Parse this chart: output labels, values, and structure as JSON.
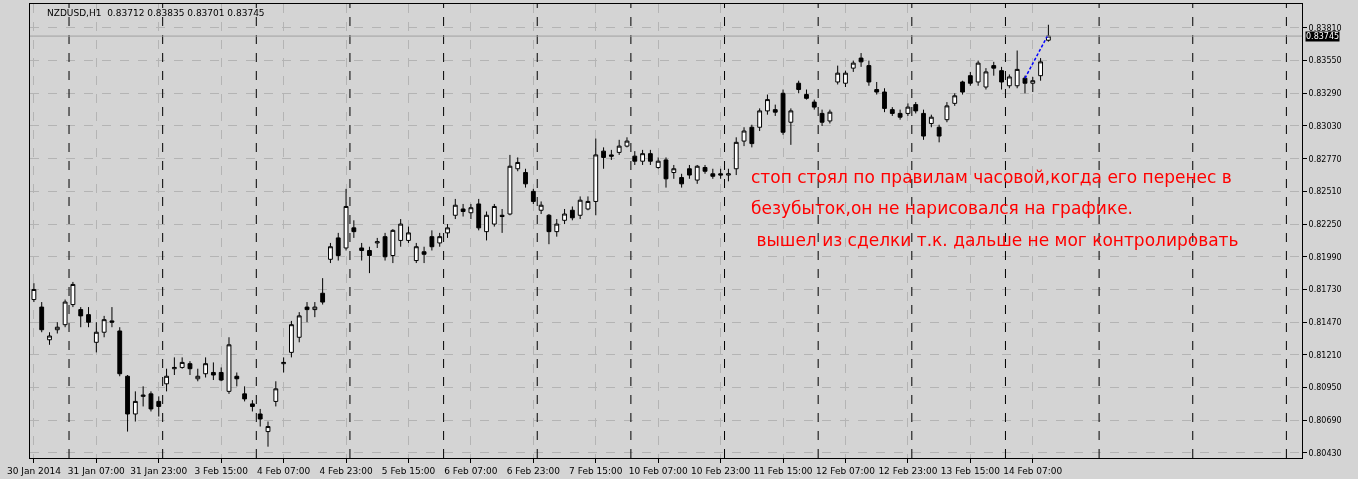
{
  "chart_data": {
    "type": "candlestick",
    "title": "NZDUSD,H1  0.83712 0.83835 0.83701 0.83745",
    "ohlc": [
      [
        0.8165,
        0.8178,
        0.8163,
        0.8173
      ],
      [
        0.8159,
        0.8163,
        0.8139,
        0.8141
      ],
      [
        0.8133,
        0.8139,
        0.8129,
        0.8136
      ],
      [
        0.8141,
        0.8147,
        0.8138,
        0.8143
      ],
      [
        0.8145,
        0.8165,
        0.8143,
        0.8163
      ],
      [
        0.8161,
        0.8179,
        0.8159,
        0.8177
      ],
      [
        0.8157,
        0.8159,
        0.8143,
        0.8152
      ],
      [
        0.8153,
        0.8159,
        0.8143,
        0.8147
      ],
      [
        0.8131,
        0.8147,
        0.8123,
        0.8139
      ],
      [
        0.8139,
        0.8152,
        0.8135,
        0.8149
      ],
      [
        0.8148,
        0.8159,
        0.8143,
        0.8147
      ],
      [
        0.814,
        0.8143,
        0.8104,
        0.8106
      ],
      [
        0.8104,
        0.8105,
        0.806,
        0.8074
      ],
      [
        0.8074,
        0.8092,
        0.8068,
        0.8084
      ],
      [
        0.8088,
        0.8096,
        0.808,
        0.8089
      ],
      [
        0.809,
        0.8092,
        0.8076,
        0.8078
      ],
      [
        0.8084,
        0.8088,
        0.8072,
        0.808
      ],
      [
        0.8098,
        0.811,
        0.8092,
        0.8104
      ],
      [
        0.811,
        0.8119,
        0.8105,
        0.8111
      ],
      [
        0.8111,
        0.8119,
        0.811,
        0.8115
      ],
      [
        0.8114,
        0.8116,
        0.8105,
        0.811
      ],
      [
        0.8102,
        0.811,
        0.81,
        0.8104
      ],
      [
        0.8106,
        0.8119,
        0.8103,
        0.8114
      ],
      [
        0.8107,
        0.8115,
        0.8101,
        0.8105
      ],
      [
        0.8107,
        0.8111,
        0.81,
        0.8101
      ],
      [
        0.8092,
        0.8135,
        0.809,
        0.8129
      ],
      [
        0.8104,
        0.8107,
        0.8096,
        0.8102
      ],
      [
        0.809,
        0.8096,
        0.8084,
        0.8086
      ],
      [
        0.8082,
        0.8085,
        0.8076,
        0.808
      ],
      [
        0.8074,
        0.8078,
        0.8064,
        0.807
      ],
      [
        0.806,
        0.8068,
        0.8048,
        0.8064
      ],
      [
        0.8084,
        0.81,
        0.808,
        0.8094
      ],
      [
        0.8114,
        0.8119,
        0.8107,
        0.8115
      ],
      [
        0.8123,
        0.8148,
        0.8119,
        0.8145
      ],
      [
        0.8135,
        0.8155,
        0.8131,
        0.8152
      ],
      [
        0.8159,
        0.8163,
        0.8147,
        0.8157
      ],
      [
        0.8157,
        0.8163,
        0.8151,
        0.8159
      ],
      [
        0.817,
        0.8182,
        0.8161,
        0.8163
      ],
      [
        0.8197,
        0.821,
        0.8194,
        0.8207
      ],
      [
        0.8214,
        0.8218,
        0.8196,
        0.82
      ],
      [
        0.8206,
        0.8253,
        0.8204,
        0.8239
      ],
      [
        0.8222,
        0.8228,
        0.8214,
        0.8219
      ],
      [
        0.8206,
        0.821,
        0.8196,
        0.8204
      ],
      [
        0.8204,
        0.8207,
        0.8186,
        0.82
      ],
      [
        0.821,
        0.8214,
        0.8206,
        0.8211
      ],
      [
        0.8215,
        0.8218,
        0.8196,
        0.8199
      ],
      [
        0.82,
        0.8221,
        0.8194,
        0.822
      ],
      [
        0.8212,
        0.8229,
        0.8207,
        0.8225
      ],
      [
        0.8212,
        0.8223,
        0.821,
        0.8218
      ],
      [
        0.8196,
        0.821,
        0.8194,
        0.8207
      ],
      [
        0.8203,
        0.8207,
        0.8194,
        0.8201
      ],
      [
        0.8215,
        0.822,
        0.8204,
        0.8207
      ],
      [
        0.821,
        0.8218,
        0.8207,
        0.8215
      ],
      [
        0.8218,
        0.8225,
        0.8214,
        0.8222
      ],
      [
        0.8232,
        0.8245,
        0.8229,
        0.824
      ],
      [
        0.8237,
        0.8241,
        0.8231,
        0.8235
      ],
      [
        0.8234,
        0.8241,
        0.8229,
        0.8238
      ],
      [
        0.8241,
        0.8245,
        0.822,
        0.8222
      ],
      [
        0.8219,
        0.8235,
        0.8212,
        0.8232
      ],
      [
        0.8225,
        0.8241,
        0.8223,
        0.8239
      ],
      [
        0.8232,
        0.8237,
        0.8218,
        0.8231
      ],
      [
        0.8233,
        0.828,
        0.8232,
        0.8271
      ],
      [
        0.8269,
        0.8278,
        0.8267,
        0.8274
      ],
      [
        0.8266,
        0.8269,
        0.8254,
        0.8257
      ],
      [
        0.8251,
        0.8253,
        0.8241,
        0.8243
      ],
      [
        0.8236,
        0.8243,
        0.8233,
        0.824
      ],
      [
        0.8232,
        0.8233,
        0.8209,
        0.8219
      ],
      [
        0.8219,
        0.8229,
        0.8215,
        0.8225
      ],
      [
        0.8228,
        0.8237,
        0.8225,
        0.8233
      ],
      [
        0.8236,
        0.8239,
        0.8228,
        0.823
      ],
      [
        0.8232,
        0.8247,
        0.8229,
        0.8244
      ],
      [
        0.8237,
        0.8247,
        0.8236,
        0.8243
      ],
      [
        0.8243,
        0.8293,
        0.8232,
        0.828
      ],
      [
        0.8283,
        0.8286,
        0.8269,
        0.8278
      ],
      [
        0.828,
        0.8284,
        0.8276,
        0.8279
      ],
      [
        0.8282,
        0.8292,
        0.828,
        0.8287
      ],
      [
        0.8287,
        0.8294,
        0.8286,
        0.8291
      ],
      [
        0.8279,
        0.8283,
        0.8272,
        0.8275
      ],
      [
        0.8275,
        0.8284,
        0.8272,
        0.8281
      ],
      [
        0.8281,
        0.8284,
        0.8272,
        0.8275
      ],
      [
        0.827,
        0.8278,
        0.8269,
        0.8275
      ],
      [
        0.8276,
        0.8278,
        0.8254,
        0.8261
      ],
      [
        0.8266,
        0.8272,
        0.8261,
        0.8269
      ],
      [
        0.8262,
        0.8265,
        0.8254,
        0.8257
      ],
      [
        0.8269,
        0.8272,
        0.8261,
        0.8264
      ],
      [
        0.826,
        0.8272,
        0.8257,
        0.8271
      ],
      [
        0.827,
        0.8272,
        0.8265,
        0.8267
      ],
      [
        0.8265,
        0.8269,
        0.8261,
        0.8263
      ],
      [
        0.8265,
        0.8269,
        0.8261,
        0.8264
      ],
      [
        0.8264,
        0.8269,
        0.8259,
        0.8265
      ],
      [
        0.8269,
        0.8294,
        0.8264,
        0.829
      ],
      [
        0.8291,
        0.8302,
        0.8287,
        0.8299
      ],
      [
        0.8302,
        0.8304,
        0.8286,
        0.8289
      ],
      [
        0.8302,
        0.8317,
        0.8299,
        0.8315
      ],
      [
        0.8315,
        0.8328,
        0.8312,
        0.8324
      ],
      [
        0.8316,
        0.832,
        0.8311,
        0.8314
      ],
      [
        0.8329,
        0.8332,
        0.8296,
        0.8298
      ],
      [
        0.8306,
        0.8317,
        0.8288,
        0.8315
      ],
      [
        0.8337,
        0.8339,
        0.8329,
        0.8332
      ],
      [
        0.8328,
        0.8332,
        0.8324,
        0.8325
      ],
      [
        0.8322,
        0.8324,
        0.8316,
        0.8318
      ],
      [
        0.8313,
        0.8316,
        0.8303,
        0.8306
      ],
      [
        0.8307,
        0.8316,
        0.8305,
        0.8314
      ],
      [
        0.8338,
        0.8351,
        0.8336,
        0.8345
      ],
      [
        0.8337,
        0.8347,
        0.8334,
        0.8345
      ],
      [
        0.8349,
        0.8355,
        0.8346,
        0.8353
      ],
      [
        0.8357,
        0.8361,
        0.835,
        0.8354
      ],
      [
        0.8351,
        0.8355,
        0.8335,
        0.8338
      ],
      [
        0.8332,
        0.8338,
        0.8328,
        0.833
      ],
      [
        0.833,
        0.8333,
        0.8314,
        0.8317
      ],
      [
        0.8316,
        0.8318,
        0.8311,
        0.8313
      ],
      [
        0.8313,
        0.8316,
        0.8308,
        0.831
      ],
      [
        0.8313,
        0.8321,
        0.8311,
        0.8318
      ],
      [
        0.832,
        0.8322,
        0.8313,
        0.8315
      ],
      [
        0.8313,
        0.8316,
        0.8292,
        0.8295
      ],
      [
        0.8305,
        0.8312,
        0.8302,
        0.831
      ],
      [
        0.8302,
        0.8304,
        0.829,
        0.8295
      ],
      [
        0.8308,
        0.8322,
        0.8306,
        0.8319
      ],
      [
        0.8321,
        0.8329,
        0.8319,
        0.8327
      ],
      [
        0.8338,
        0.8339,
        0.8328,
        0.833
      ],
      [
        0.8343,
        0.8346,
        0.8335,
        0.8337
      ],
      [
        0.8338,
        0.8355,
        0.8335,
        0.8353
      ],
      [
        0.8334,
        0.8349,
        0.8332,
        0.8346
      ],
      [
        0.8351,
        0.8354,
        0.8343,
        0.8349
      ],
      [
        0.8347,
        0.835,
        0.8332,
        0.8338
      ],
      [
        0.8335,
        0.8344,
        0.8333,
        0.8342
      ],
      [
        0.8335,
        0.8363,
        0.8333,
        0.8348
      ],
      [
        0.8341,
        0.8343,
        0.8329,
        0.8337
      ],
      [
        0.8337,
        0.8342,
        0.833,
        0.8339
      ],
      [
        0.8343,
        0.8357,
        0.8339,
        0.8354
      ],
      [
        0.83712,
        0.83835,
        0.83701,
        0.83745
      ],
      null,
      null,
      null,
      null,
      null,
      null,
      null,
      null,
      null,
      null,
      null,
      null,
      null,
      null,
      null,
      null,
      null,
      null,
      null,
      null,
      null,
      null,
      null,
      null,
      null,
      null,
      null,
      null,
      null,
      null,
      null,
      null
    ],
    "series": [
      {
        "type": "line",
        "color": "#0000ff",
        "line_style": "dashed",
        "values": [
          null,
          null,
          null,
          null,
          null,
          null,
          null,
          null,
          null,
          null,
          null,
          null,
          null,
          null,
          null,
          null,
          null,
          null,
          null,
          null,
          null,
          null,
          null,
          null,
          null,
          null,
          null,
          null,
          null,
          null,
          null,
          null,
          null,
          null,
          null,
          null,
          null,
          null,
          null,
          null,
          null,
          null,
          null,
          null,
          null,
          null,
          null,
          null,
          null,
          null,
          null,
          null,
          null,
          null,
          null,
          null,
          null,
          null,
          null,
          null,
          null,
          null,
          null,
          null,
          null,
          null,
          null,
          null,
          null,
          null,
          null,
          null,
          null,
          null,
          null,
          null,
          null,
          null,
          null,
          null,
          null,
          null,
          null,
          null,
          null,
          null,
          null,
          null,
          null,
          null,
          null,
          null,
          null,
          null,
          null,
          null,
          null,
          null,
          null,
          null,
          null,
          null,
          null,
          null,
          null,
          null,
          null,
          null,
          null,
          null,
          null,
          null,
          null,
          null,
          null,
          null,
          null,
          null,
          null,
          null,
          null,
          null,
          null,
          null,
          null,
          null,
          null,
          0.8341,
          null,
          null,
          0.8376,
          null,
          null,
          null,
          null,
          null,
          null,
          null,
          null,
          null,
          null,
          null,
          null,
          null,
          null,
          null,
          null,
          null,
          null,
          null,
          null,
          null,
          null,
          null,
          null,
          null,
          null,
          null,
          null,
          null,
          null,
          null,
          null
        ]
      }
    ],
    "categories": [
      "30 Jan 2014",
      null,
      null,
      null,
      null,
      null,
      null,
      null,
      "31 Jan 07:00",
      null,
      null,
      null,
      null,
      null,
      null,
      null,
      "31 Jan 23:00",
      null,
      null,
      null,
      null,
      null,
      null,
      null,
      "3 Feb 15:00",
      null,
      null,
      null,
      null,
      null,
      null,
      null,
      "4 Feb 07:00",
      null,
      null,
      null,
      null,
      null,
      null,
      null,
      "4 Feb 23:00",
      null,
      null,
      null,
      null,
      null,
      null,
      null,
      "5 Feb 15:00",
      null,
      null,
      null,
      null,
      null,
      null,
      null,
      "6 Feb 07:00",
      null,
      null,
      null,
      null,
      null,
      null,
      null,
      "6 Feb 23:00",
      null,
      null,
      null,
      null,
      null,
      null,
      null,
      "7 Feb 15:00",
      null,
      null,
      null,
      null,
      null,
      null,
      null,
      "10 Feb 07:00",
      null,
      null,
      null,
      null,
      null,
      null,
      null,
      "10 Feb 23:00",
      null,
      null,
      null,
      null,
      null,
      null,
      null,
      "11 Feb 15:00",
      null,
      null,
      null,
      null,
      null,
      null,
      null,
      "12 Feb 07:00",
      null,
      null,
      null,
      null,
      null,
      null,
      null,
      "12 Feb 23:00",
      null,
      null,
      null,
      null,
      null,
      null,
      null,
      "13 Feb 15:00",
      null,
      null,
      null,
      null,
      null,
      null,
      null,
      "14 Feb 07:00",
      null,
      null,
      null,
      null,
      null,
      null,
      null,
      null,
      null,
      null,
      null,
      null,
      null,
      null,
      null,
      null,
      null,
      null,
      null,
      null,
      null,
      null,
      null,
      null,
      null,
      null,
      null,
      null,
      null,
      null,
      null,
      null,
      null,
      null
    ],
    "ylim": [
      0.8039,
      0.84
    ],
    "yticks": [
      {
        "value": 0.8043,
        "label": "0.80430"
      },
      {
        "value": 0.8069,
        "label": "0.80690"
      },
      {
        "value": 0.8095,
        "label": "0.80950"
      },
      {
        "value": 0.8121,
        "label": "0.81210"
      },
      {
        "value": 0.8147,
        "label": "0.81470"
      },
      {
        "value": 0.8173,
        "label": "0.81730"
      },
      {
        "value": 0.8199,
        "label": "0.81990"
      },
      {
        "value": 0.8225,
        "label": "0.82250"
      },
      {
        "value": 0.8251,
        "label": "0.82510"
      },
      {
        "value": 0.8277,
        "label": "0.82770"
      },
      {
        "value": 0.8303,
        "label": "0.83030"
      },
      {
        "value": 0.8329,
        "label": "0.83290"
      },
      {
        "value": 0.8355,
        "label": "0.83550"
      },
      {
        "value": 0.8381,
        "label": "0.83810"
      }
    ],
    "ref_lines": [
      {
        "axis": "y",
        "value": 0.83745,
        "label": "0.83745",
        "color": "#a0a0a0",
        "line_style": "solid"
      }
    ],
    "annotations": [
      "стоп стоял по правилам часовой,когда его перенес в",
      "безубыток,он не нарисовался на графике.",
      " вышел из сделки т.к. дальше не мог контролировать"
    ],
    "grid": true
  }
}
